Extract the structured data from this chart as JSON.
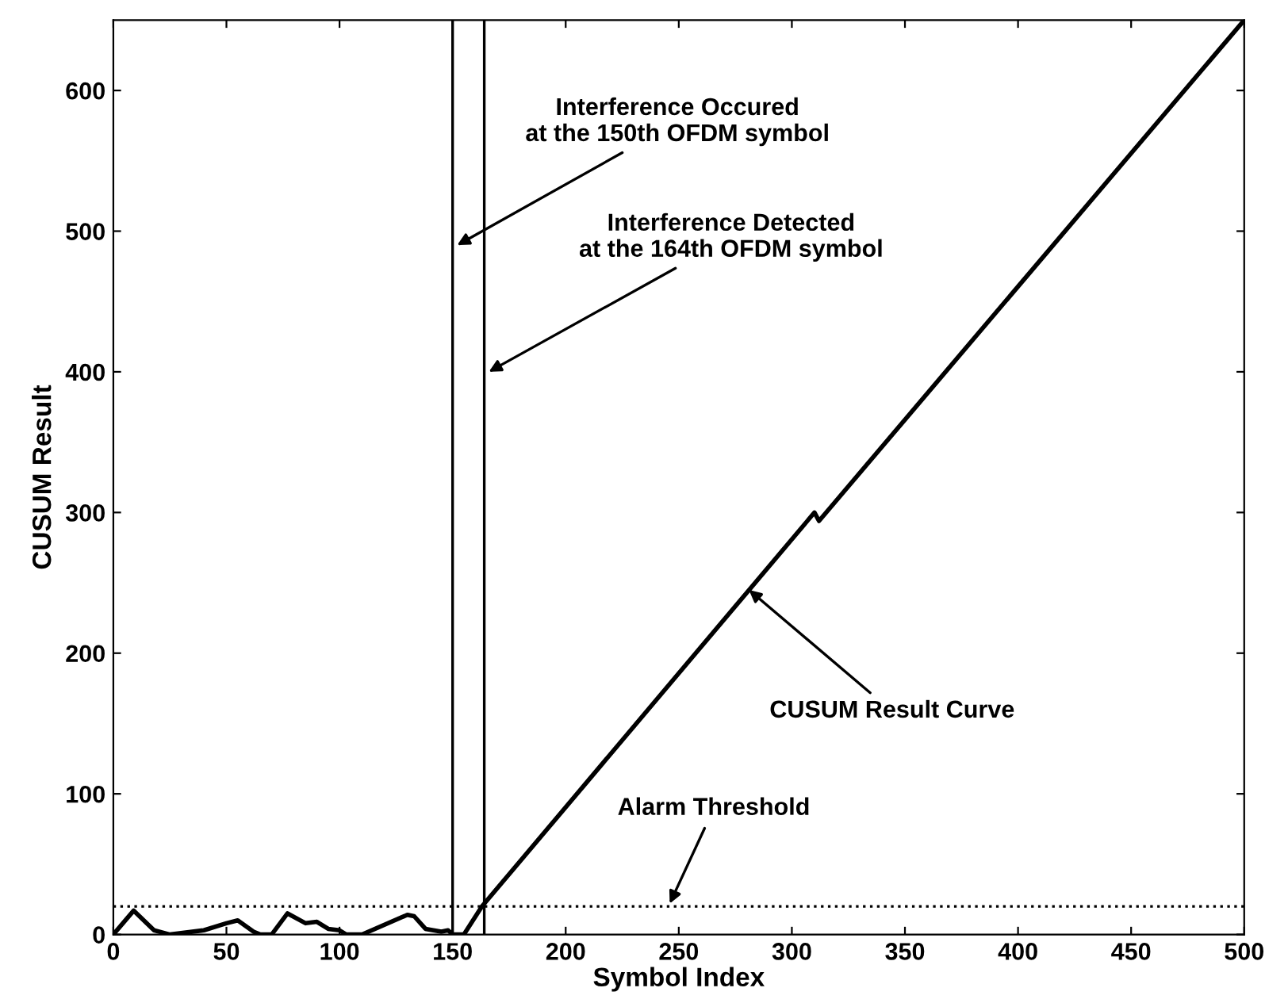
{
  "chart_data": {
    "type": "line",
    "xlabel": "Symbol Index",
    "ylabel": "CUSUM Result",
    "xlim": [
      0,
      500
    ],
    "ylim": [
      0,
      650
    ],
    "xticks": [
      0,
      50,
      100,
      150,
      200,
      250,
      300,
      350,
      400,
      450,
      500
    ],
    "yticks": [
      0,
      100,
      200,
      300,
      400,
      500,
      600
    ],
    "grid": false,
    "marker": "none",
    "line_style": "solid",
    "series": [
      {
        "color": "#000000",
        "x": [
          0,
          9,
          18,
          25,
          40,
          50,
          55,
          62,
          65,
          70,
          77,
          85,
          90,
          95,
          100,
          103,
          110,
          130,
          133,
          138,
          145,
          148,
          150,
          155,
          163,
          310,
          312,
          500
        ],
        "values": [
          0,
          17,
          3,
          0,
          3,
          8,
          10,
          2,
          0,
          0,
          15,
          8,
          9,
          4,
          3,
          0,
          0,
          14,
          13,
          4,
          2,
          3,
          0,
          0,
          20,
          300,
          294,
          650
        ]
      }
    ],
    "ref_lines": [
      {
        "axis": "x",
        "value": 150,
        "color": "#000000",
        "line_style": "solid"
      },
      {
        "axis": "x",
        "value": 164,
        "color": "#000000",
        "line_style": "solid"
      },
      {
        "axis": "y",
        "value": 20,
        "color": "#000000",
        "line_style": "dotted"
      }
    ],
    "annotations": [
      {
        "text": "Interference Occured\nat the 150th OFDM symbol",
        "x": 152,
        "y": 490
      },
      {
        "text": "Interference Detected\nat the 164th OFDM symbol",
        "x": 166,
        "y": 400
      },
      {
        "text": "CUSUM Result Curve",
        "x": 281,
        "y": 245
      },
      {
        "text": "Alarm Threshold",
        "x": 246,
        "y": 22
      }
    ]
  }
}
